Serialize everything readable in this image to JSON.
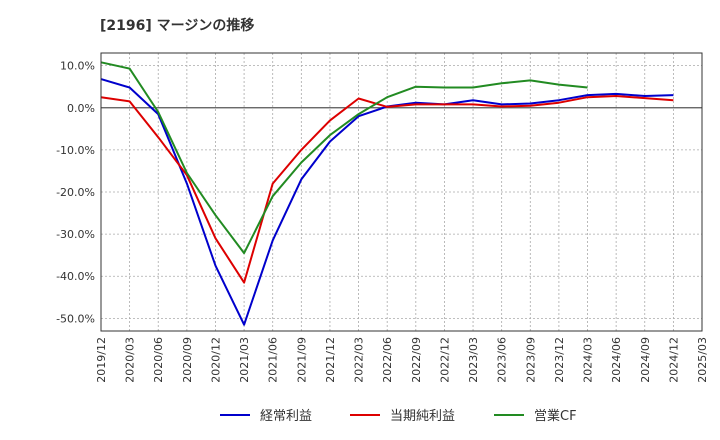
{
  "chart_data": {
    "type": "line",
    "title": "[2196]  マージンの推移",
    "xlabel": "",
    "ylabel": "",
    "ylim": [
      -53,
      13
    ],
    "yticks": [
      10,
      0,
      -10,
      -20,
      -30,
      -40,
      -50
    ],
    "ytick_labels": [
      "10.0%",
      "0.0%",
      "-10.0%",
      "-20.0%",
      "-30.0%",
      "-40.0%",
      "-50.0%"
    ],
    "xtick_labels": [
      "2019/12",
      "2020/03",
      "2020/06",
      "2020/09",
      "2020/12",
      "2021/03",
      "2021/06",
      "2021/09",
      "2021/12",
      "2022/03",
      "2022/06",
      "2022/09",
      "2022/12",
      "2023/03",
      "2023/06",
      "2023/09",
      "2023/12",
      "2024/03",
      "2024/06",
      "2024/09",
      "2024/12",
      "2025/03"
    ],
    "grid": true,
    "legend_position": "bottom",
    "series": [
      {
        "name": "経常利益",
        "color": "#0000cc",
        "values": [
          6.8,
          4.8,
          -1.5,
          -18.0,
          -37.5,
          -51.5,
          -31.5,
          -17.0,
          -8.0,
          -2.0,
          0.3,
          1.2,
          0.8,
          1.8,
          0.8,
          1.0,
          1.8,
          3.0,
          3.3,
          2.8,
          3.0,
          null
        ]
      },
      {
        "name": "当期純利益",
        "color": "#dd0000",
        "values": [
          2.5,
          1.5,
          -7.0,
          -16.0,
          -31.0,
          -41.5,
          -18.0,
          -10.0,
          -3.0,
          2.2,
          0.2,
          0.8,
          0.8,
          0.8,
          0.3,
          0.5,
          1.2,
          2.5,
          2.8,
          2.3,
          1.8,
          null
        ]
      },
      {
        "name": "営業CF",
        "color": "#228B22",
        "values": [
          10.8,
          9.3,
          -1.0,
          -15.5,
          -25.5,
          -34.5,
          -21.0,
          -13.0,
          -6.5,
          -1.5,
          2.5,
          5.0,
          4.8,
          4.8,
          5.8,
          6.5,
          5.5,
          4.8,
          null,
          null,
          null,
          null
        ]
      }
    ]
  }
}
